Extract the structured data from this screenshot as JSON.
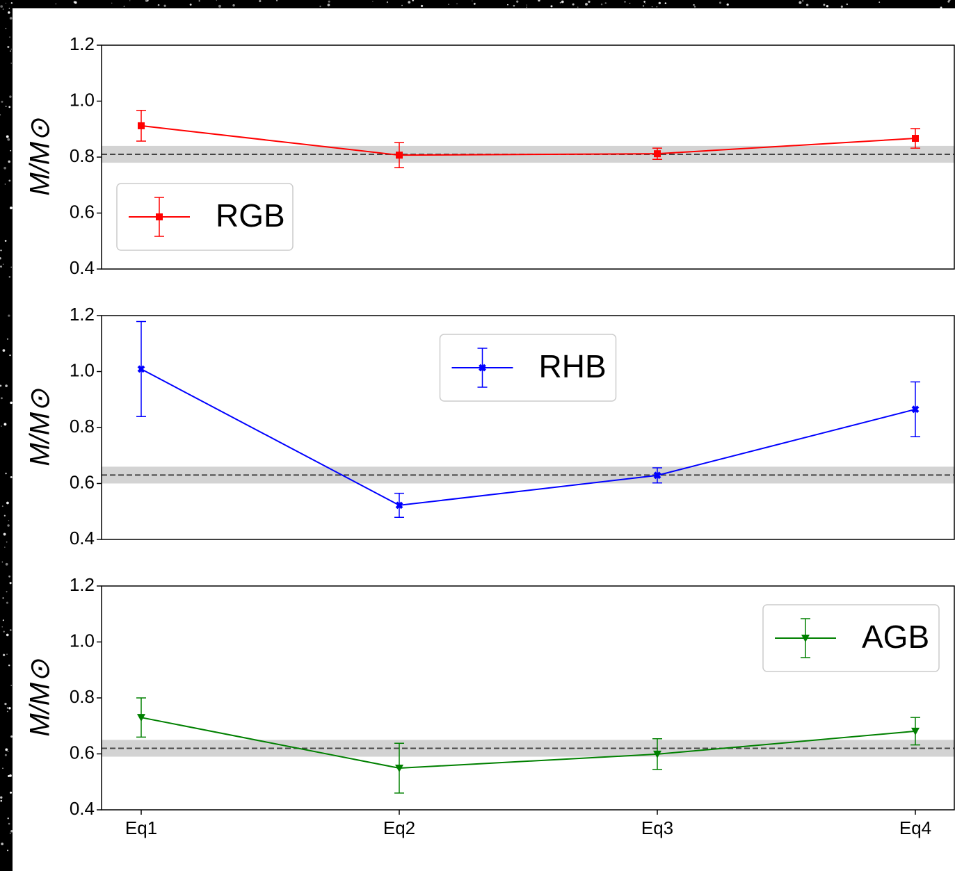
{
  "chart_data": [
    {
      "type": "line",
      "ylabel": "M/M⊙",
      "ylim": [
        0.4,
        1.2
      ],
      "yticks": [
        0.4,
        0.6,
        0.8,
        {
          "value": 1,
          "label": "1.0"
        },
        1.2
      ],
      "reference_line": 0.81,
      "reference_band": [
        0.78,
        0.84
      ],
      "legend_loc": "lower left",
      "series": [
        {
          "name": "RGB",
          "color": "#ff0000",
          "marker": "square",
          "values": [
            0.912,
            0.807,
            0.812,
            0.867
          ],
          "errors": [
            0.055,
            0.045,
            0.02,
            0.035
          ]
        }
      ]
    },
    {
      "type": "line",
      "ylabel": "M/M⊙",
      "ylim": [
        0.4,
        1.2
      ],
      "yticks": [
        0.4,
        0.6,
        0.8,
        {
          "value": 1,
          "label": "1.0"
        },
        1.2
      ],
      "reference_line": 0.63,
      "reference_band": [
        0.6,
        0.66
      ],
      "legend_loc": "upper center",
      "series": [
        {
          "name": "RHB",
          "color": "#0000ff",
          "marker": "x",
          "values": [
            1.009,
            0.522,
            0.629,
            0.865
          ],
          "errors": [
            0.17,
            0.043,
            0.027,
            0.098
          ]
        }
      ]
    },
    {
      "type": "line",
      "ylabel": "M/M⊙",
      "ylim": [
        0.4,
        1.2
      ],
      "yticks": [
        0.4,
        0.6,
        0.8,
        {
          "value": 1,
          "label": "1.0"
        },
        1.2
      ],
      "categories": [
        "Eq1",
        "Eq2",
        "Eq3",
        "Eq4"
      ],
      "reference_line": 0.62,
      "reference_band": [
        0.59,
        0.65
      ],
      "legend_loc": "upper right",
      "series": [
        {
          "name": "AGB",
          "color": "#008000",
          "marker": "triangle_down",
          "values": [
            0.73,
            0.549,
            0.599,
            0.681
          ],
          "errors": [
            0.07,
            0.089,
            0.055,
            0.049
          ]
        }
      ]
    }
  ]
}
